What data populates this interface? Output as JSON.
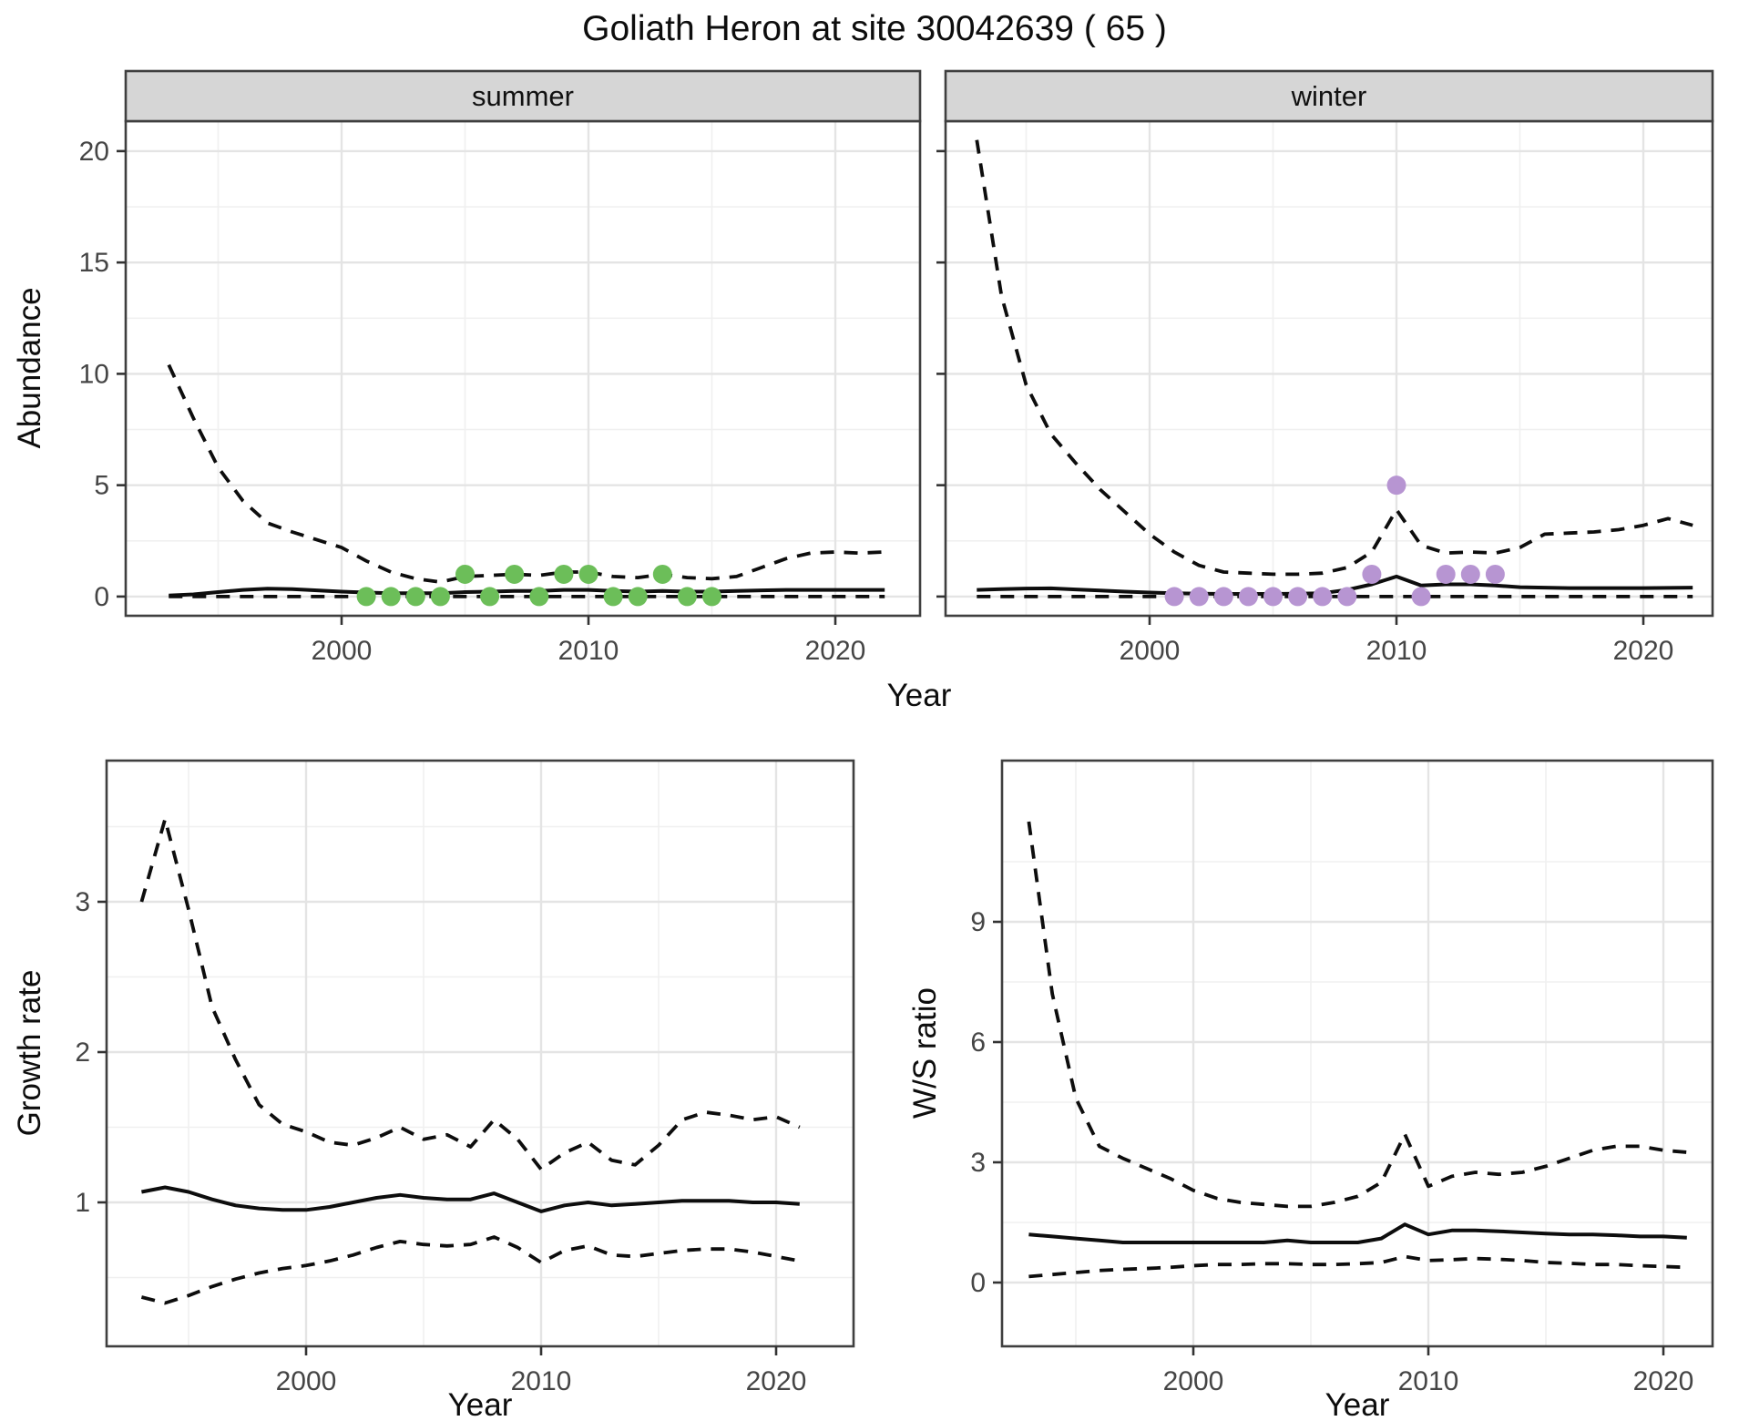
{
  "title": "Goliath Heron at site 30042639 ( 65 )",
  "colors": {
    "summer_point": "#6cbe59",
    "winter_point": "#b795d2",
    "line": "#0d0d0d",
    "grid_major": "#e4e4e4",
    "grid_minor": "#f0f0f0",
    "panel_border": "#3f3f3f",
    "strip_bg": "#d6d6d6",
    "axis_text": "#454545",
    "title_text": "#0d0d0d"
  },
  "chart_data": [
    {
      "id": "abundance-summer",
      "type": "line",
      "facet_label": "summer",
      "xlabel": "Year",
      "ylabel": "Abundance",
      "x_ticks": [
        2000,
        2010,
        2020
      ],
      "x_minor_ticks": [
        1995,
        2005,
        2015
      ],
      "y_ticks": [
        0,
        5,
        10,
        15,
        20
      ],
      "y_minor_ticks": [
        2.5,
        7.5,
        12.5,
        17.5
      ],
      "ylim": [
        -0.9,
        21.4
      ],
      "years": [
        1993,
        1994,
        1995,
        1996,
        1997,
        1998,
        1999,
        2000,
        2001,
        2002,
        2003,
        2004,
        2005,
        2006,
        2007,
        2008,
        2009,
        2010,
        2011,
        2012,
        2013,
        2014,
        2015,
        2016,
        2017,
        2018,
        2019,
        2020,
        2021,
        2022
      ],
      "series": [
        {
          "name": "upper-95ci",
          "line_style": "dashed",
          "values": [
            10.4,
            8.0,
            5.8,
            4.3,
            3.3,
            2.9,
            2.55,
            2.2,
            1.6,
            1.1,
            0.8,
            0.65,
            0.9,
            0.95,
            1.0,
            0.95,
            1.1,
            1.1,
            0.9,
            0.85,
            1.0,
            0.85,
            0.8,
            0.9,
            1.3,
            1.7,
            1.95,
            2.0,
            1.95,
            2.0
          ]
        },
        {
          "name": "median-fit",
          "line_style": "solid",
          "values": [
            0.05,
            0.1,
            0.2,
            0.3,
            0.35,
            0.33,
            0.28,
            0.22,
            0.18,
            0.15,
            0.15,
            0.15,
            0.2,
            0.22,
            0.25,
            0.25,
            0.3,
            0.3,
            0.25,
            0.22,
            0.25,
            0.22,
            0.22,
            0.25,
            0.28,
            0.3,
            0.3,
            0.3,
            0.3,
            0.3
          ]
        },
        {
          "name": "lower-95ci",
          "line_style": "dashed",
          "values": [
            0,
            0,
            0,
            0,
            0,
            0,
            0,
            0,
            0,
            0,
            0,
            0,
            0,
            0,
            0,
            0,
            0,
            0,
            0,
            0,
            0,
            0,
            0,
            0,
            0,
            0,
            0,
            0,
            0,
            0
          ]
        }
      ],
      "observed_points": {
        "name": "summer-counts",
        "color": "#6cbe59",
        "years": [
          2001,
          2002,
          2003,
          2004,
          2005,
          2006,
          2007,
          2008,
          2009,
          2010,
          2011,
          2012,
          2013,
          2014,
          2015
        ],
        "values": [
          0,
          0,
          0,
          0,
          1,
          0,
          1,
          0,
          1,
          1,
          0,
          0,
          1,
          0,
          0
        ]
      }
    },
    {
      "id": "abundance-winter",
      "type": "line",
      "facet_label": "winter",
      "xlabel": "Year",
      "ylabel": "Abundance",
      "x_ticks": [
        2000,
        2010,
        2020
      ],
      "x_minor_ticks": [
        1995,
        2005,
        2015
      ],
      "y_ticks": [
        0,
        5,
        10,
        15,
        20
      ],
      "y_minor_ticks": [
        2.5,
        7.5,
        12.5,
        17.5
      ],
      "ylim": [
        -0.9,
        21.4
      ],
      "years": [
        1993,
        1994,
        1995,
        1996,
        1997,
        1998,
        1999,
        2000,
        2001,
        2002,
        2003,
        2004,
        2005,
        2006,
        2007,
        2008,
        2009,
        2010,
        2011,
        2012,
        2013,
        2014,
        2015,
        2016,
        2017,
        2018,
        2019,
        2020,
        2021,
        2022
      ],
      "series": [
        {
          "name": "upper-95ci",
          "line_style": "dashed",
          "values": [
            20.5,
            13.5,
            9.5,
            7.3,
            6.0,
            4.8,
            3.8,
            2.8,
            2.0,
            1.4,
            1.1,
            1.05,
            1.0,
            1.0,
            1.05,
            1.3,
            2.0,
            3.9,
            2.3,
            1.95,
            2.0,
            1.95,
            2.2,
            2.8,
            2.85,
            2.9,
            3.0,
            3.2,
            3.5,
            3.2
          ]
        },
        {
          "name": "median-fit",
          "line_style": "solid",
          "values": [
            0.3,
            0.33,
            0.36,
            0.37,
            0.32,
            0.27,
            0.22,
            0.18,
            0.15,
            0.13,
            0.12,
            0.12,
            0.12,
            0.13,
            0.15,
            0.3,
            0.55,
            0.9,
            0.5,
            0.55,
            0.55,
            0.5,
            0.42,
            0.4,
            0.38,
            0.38,
            0.38,
            0.38,
            0.39,
            0.4
          ]
        },
        {
          "name": "lower-95ci",
          "line_style": "dashed",
          "values": [
            0,
            0,
            0,
            0,
            0,
            0,
            0,
            0,
            0,
            0,
            0,
            0,
            0,
            0,
            0,
            0,
            0,
            0,
            0,
            0,
            0,
            0,
            0,
            0,
            0,
            0,
            0,
            0,
            0,
            0
          ]
        }
      ],
      "observed_points": {
        "name": "winter-counts",
        "color": "#b795d2",
        "years": [
          2001,
          2002,
          2003,
          2004,
          2005,
          2006,
          2007,
          2008,
          2009,
          2010,
          2011,
          2012,
          2013,
          2014
        ],
        "values": [
          0,
          0,
          0,
          0,
          0,
          0,
          0,
          0,
          1,
          5,
          0,
          1,
          1,
          1
        ]
      }
    },
    {
      "id": "growth-rate",
      "type": "line",
      "facet_label": "",
      "xlabel": "Year",
      "ylabel": "Growth rate",
      "x_ticks": [
        2000,
        2010,
        2020
      ],
      "x_minor_ticks": [
        1995,
        2005,
        2015
      ],
      "y_ticks": [
        1,
        2,
        3
      ],
      "y_minor_ticks": [
        0.5,
        1.5,
        2.5,
        3.5
      ],
      "ylim": [
        0.04,
        3.94
      ],
      "years": [
        1993,
        1994,
        1995,
        1996,
        1997,
        1998,
        1999,
        2000,
        2001,
        2002,
        2003,
        2004,
        2005,
        2006,
        2007,
        2008,
        2009,
        2010,
        2011,
        2012,
        2013,
        2014,
        2015,
        2016,
        2017,
        2018,
        2019,
        2020,
        2021
      ],
      "series": [
        {
          "name": "upper-95ci",
          "line_style": "dashed",
          "values": [
            3.0,
            3.55,
            2.95,
            2.3,
            1.95,
            1.65,
            1.52,
            1.47,
            1.4,
            1.38,
            1.43,
            1.5,
            1.42,
            1.45,
            1.37,
            1.55,
            1.42,
            1.22,
            1.33,
            1.4,
            1.28,
            1.25,
            1.38,
            1.55,
            1.6,
            1.58,
            1.55,
            1.57,
            1.5
          ]
        },
        {
          "name": "median-fit",
          "line_style": "solid",
          "values": [
            1.07,
            1.1,
            1.07,
            1.02,
            0.98,
            0.96,
            0.95,
            0.95,
            0.97,
            1.0,
            1.03,
            1.05,
            1.03,
            1.02,
            1.02,
            1.06,
            1.0,
            0.94,
            0.98,
            1.0,
            0.98,
            0.99,
            1.0,
            1.01,
            1.01,
            1.01,
            1.0,
            1.0,
            0.99
          ]
        },
        {
          "name": "lower-95ci",
          "line_style": "dashed",
          "values": [
            0.37,
            0.33,
            0.38,
            0.44,
            0.49,
            0.53,
            0.56,
            0.58,
            0.61,
            0.65,
            0.7,
            0.74,
            0.72,
            0.71,
            0.72,
            0.77,
            0.7,
            0.6,
            0.68,
            0.71,
            0.65,
            0.64,
            0.66,
            0.68,
            0.69,
            0.69,
            0.67,
            0.64,
            0.61
          ]
        }
      ],
      "observed_points": null
    },
    {
      "id": "ws-ratio",
      "type": "line",
      "facet_label": "",
      "xlabel": "Year",
      "ylabel": "W/S ratio",
      "x_ticks": [
        2000,
        2010,
        2020
      ],
      "x_minor_ticks": [
        1995,
        2005,
        2015
      ],
      "y_ticks": [
        0,
        3,
        6,
        9
      ],
      "y_minor_ticks": [
        1.5,
        4.5,
        7.5,
        10.5
      ],
      "ylim": [
        -1.6,
        13.0
      ],
      "years": [
        1993,
        1994,
        1995,
        1996,
        1997,
        1998,
        1999,
        2000,
        2001,
        2002,
        2003,
        2004,
        2005,
        2006,
        2007,
        2008,
        2009,
        2010,
        2011,
        2012,
        2013,
        2014,
        2015,
        2016,
        2017,
        2018,
        2019,
        2020,
        2021
      ],
      "series": [
        {
          "name": "upper-95ci",
          "line_style": "dashed",
          "values": [
            11.5,
            7.2,
            4.6,
            3.4,
            3.1,
            2.85,
            2.6,
            2.3,
            2.1,
            2.0,
            1.95,
            1.9,
            1.9,
            2.0,
            2.15,
            2.5,
            3.7,
            2.4,
            2.65,
            2.75,
            2.7,
            2.75,
            2.9,
            3.1,
            3.3,
            3.4,
            3.4,
            3.3,
            3.25
          ]
        },
        {
          "name": "median-fit",
          "line_style": "solid",
          "values": [
            1.2,
            1.15,
            1.1,
            1.05,
            1.0,
            1.0,
            1.0,
            1.0,
            1.0,
            1.0,
            1.0,
            1.05,
            1.0,
            1.0,
            1.0,
            1.1,
            1.45,
            1.2,
            1.3,
            1.3,
            1.28,
            1.25,
            1.22,
            1.2,
            1.2,
            1.18,
            1.15,
            1.15,
            1.12
          ]
        },
        {
          "name": "lower-95ci",
          "line_style": "dashed",
          "values": [
            0.15,
            0.2,
            0.25,
            0.3,
            0.33,
            0.35,
            0.38,
            0.42,
            0.45,
            0.45,
            0.47,
            0.47,
            0.45,
            0.45,
            0.47,
            0.5,
            0.65,
            0.55,
            0.57,
            0.6,
            0.58,
            0.55,
            0.5,
            0.48,
            0.45,
            0.45,
            0.42,
            0.4,
            0.38
          ]
        }
      ],
      "observed_points": null
    }
  ]
}
